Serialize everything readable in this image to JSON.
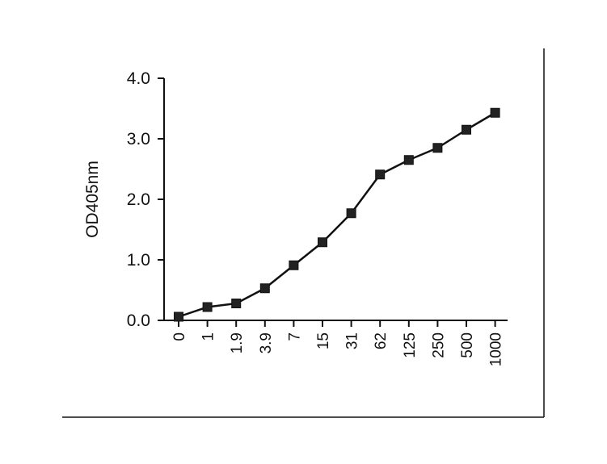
{
  "chart_data": {
    "type": "line",
    "title": "",
    "xlabel": "",
    "ylabel": "OD405nm",
    "categories": [
      "0",
      "1",
      "1.9",
      "3.9",
      "7",
      "15",
      "31",
      "62",
      "125",
      "250",
      "500",
      "1000"
    ],
    "values": [
      0.06,
      0.22,
      0.28,
      0.53,
      0.91,
      1.29,
      1.77,
      2.41,
      2.65,
      2.85,
      3.15,
      3.43
    ],
    "y_ticks": [
      "0.0",
      "1.0",
      "2.0",
      "3.0",
      "4.0"
    ],
    "ylim": [
      0,
      4
    ],
    "grid": false,
    "legend": "none",
    "marker": "square",
    "line_color": "#111111"
  }
}
